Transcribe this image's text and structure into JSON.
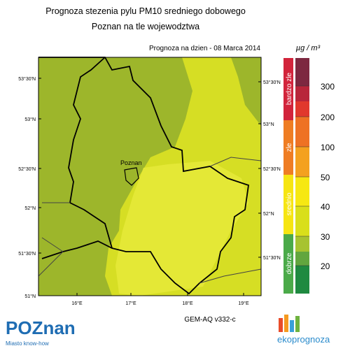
{
  "header": {
    "title": "Prognoza stezenia pylu PM10 sredniego dobowego",
    "subtitle": "Poznan na tle wojewodztwa",
    "date": "Prognoza na dzien -  08 Marca 2014",
    "unit": "µg / m³"
  },
  "map": {
    "lat_labels_left": [
      "53°30'N",
      "53°N",
      "52°30'N",
      "52°N",
      "51°30'N",
      "51°N"
    ],
    "lat_labels_right": [
      "53°30'N",
      "53°N",
      "52°30'N",
      "52°N",
      "51°30'N"
    ],
    "lon_labels": [
      "16°E",
      "17°E",
      "18°E",
      "19°E"
    ],
    "city": "Poznan"
  },
  "legend": {
    "categories": [
      "bardzo zle",
      "zle",
      "srednio",
      "dobrze"
    ],
    "ticks": [
      300,
      200,
      100,
      50,
      40,
      30,
      20
    ]
  },
  "footer": {
    "model": "GEM-AQ v332-c",
    "logo_left": "POZnan",
    "logo_left_tagline": "Miasto know-how",
    "logo_right": "ekoprognoza"
  }
}
